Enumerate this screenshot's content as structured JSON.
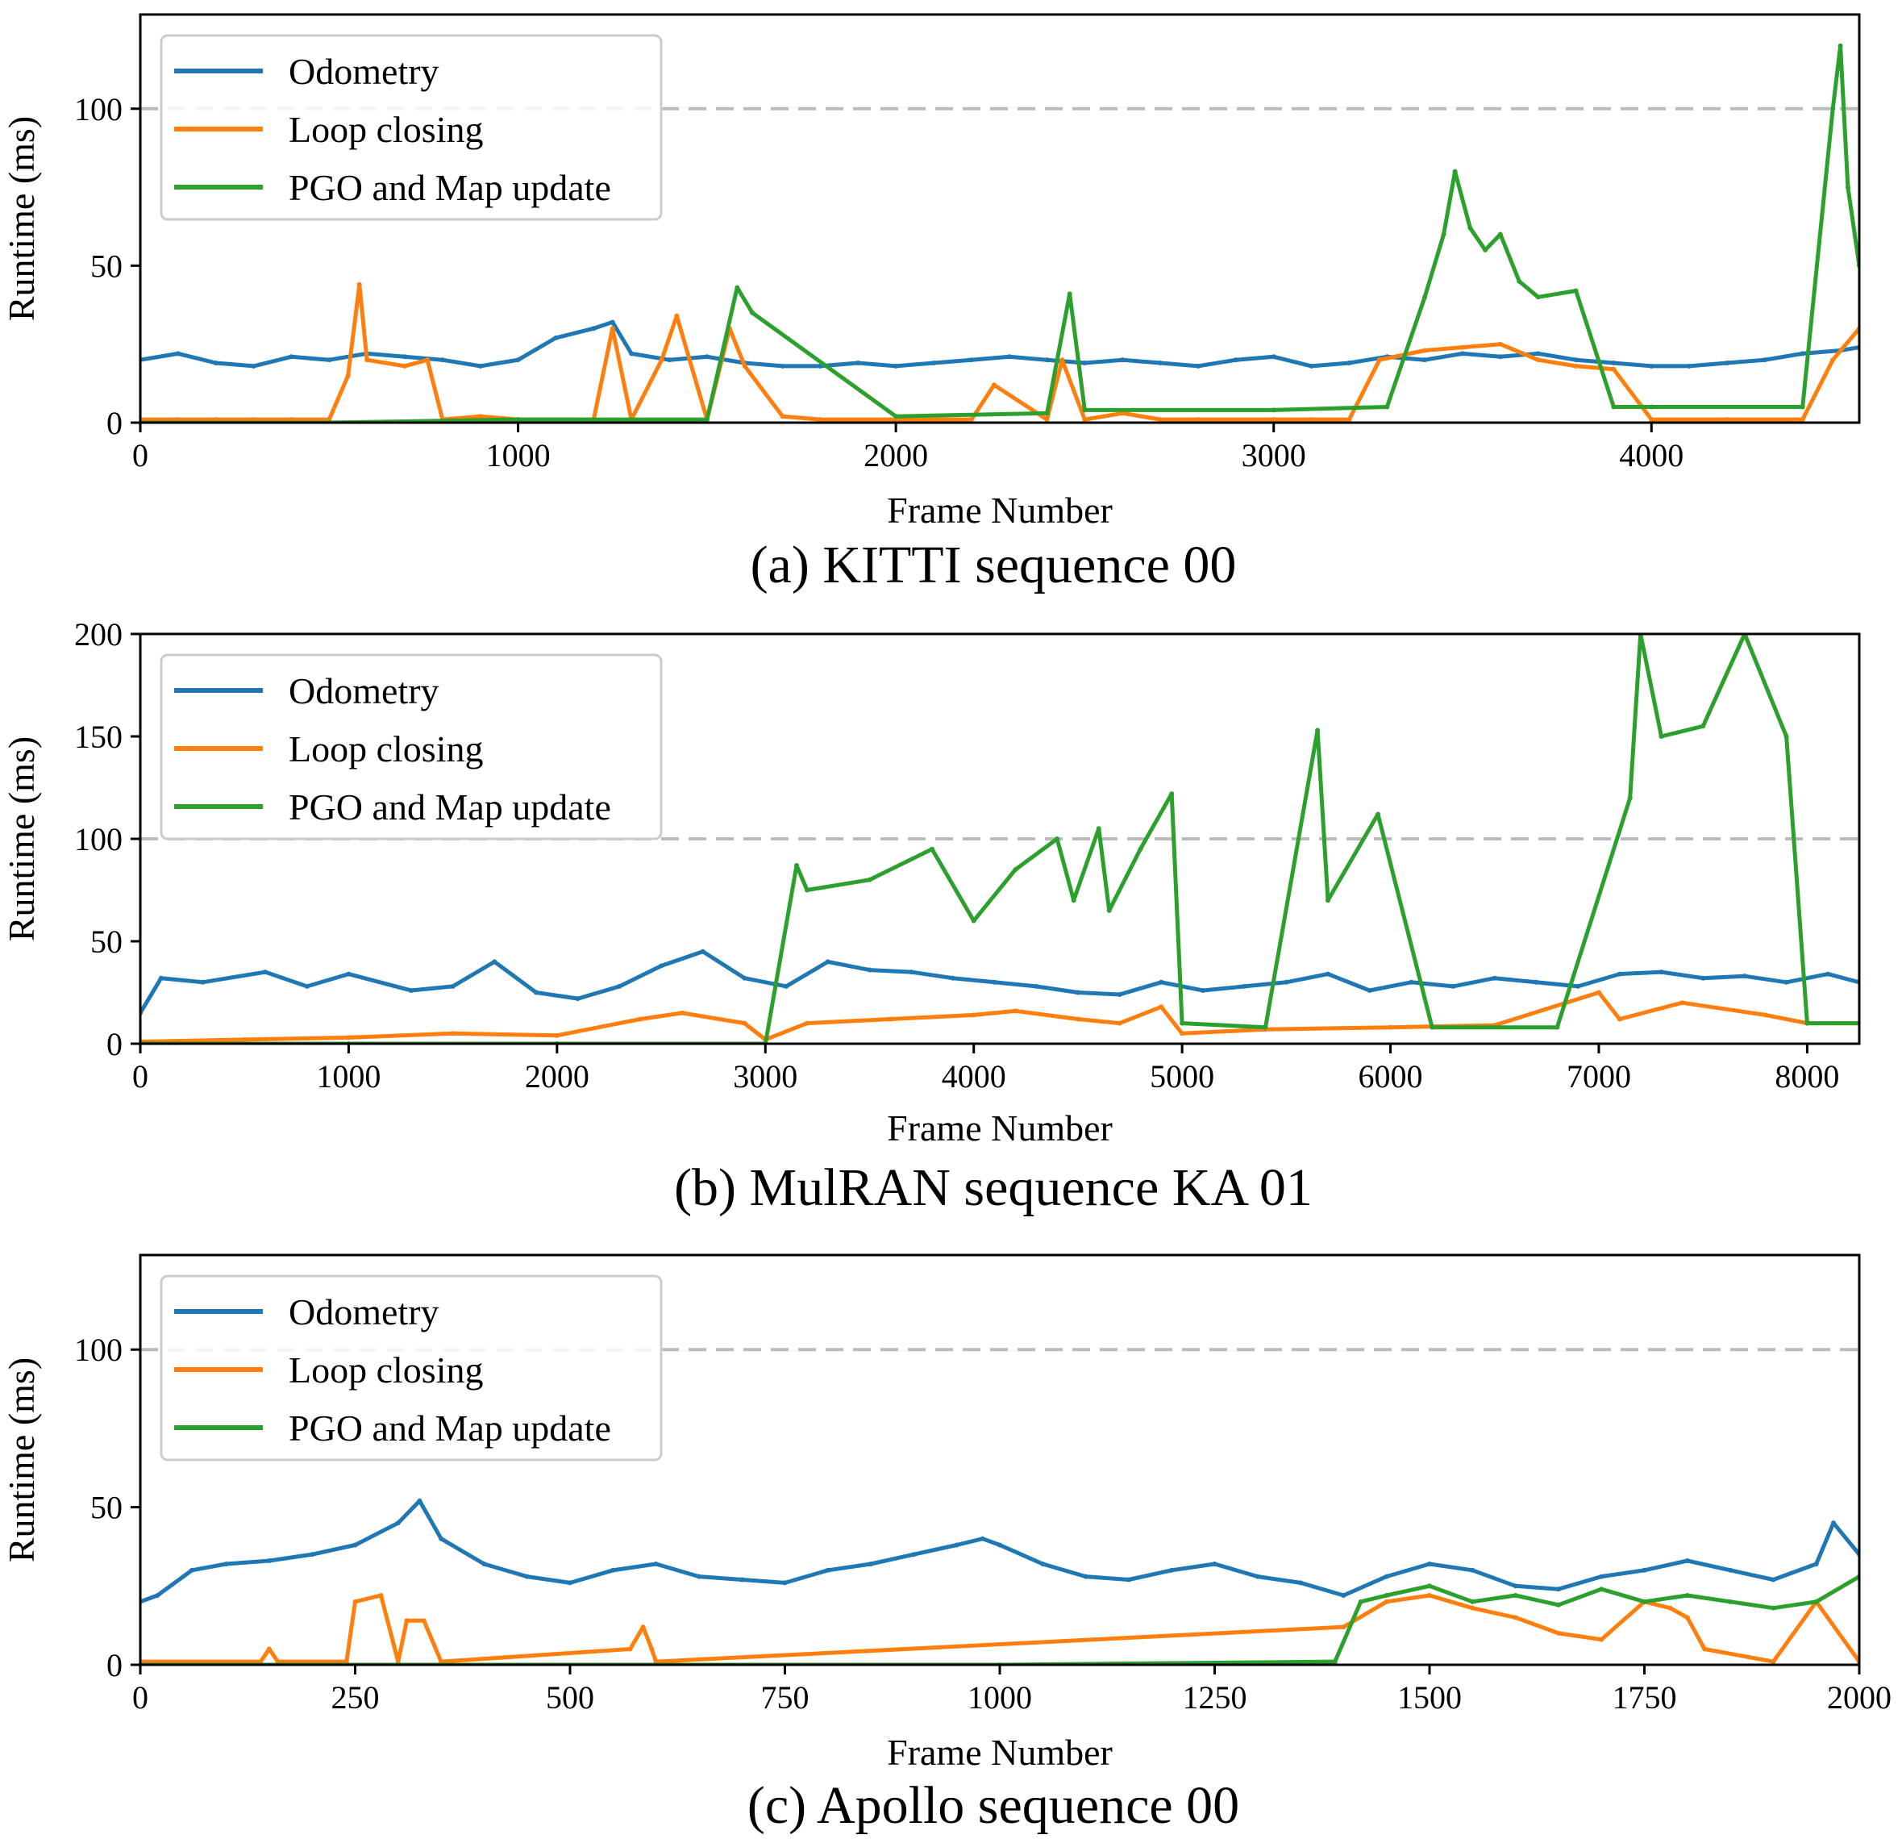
{
  "chart_data": [
    {
      "type": "line",
      "caption": "(a) KITTI sequence 00",
      "xlabel": "Frame Number",
      "ylabel": "Runtime (ms)",
      "xlim": [
        0,
        4550
      ],
      "ylim": [
        0,
        130
      ],
      "xticks": [
        0,
        1000,
        2000,
        3000,
        4000
      ],
      "yticks": [
        0,
        50,
        100
      ],
      "reference_line": {
        "y": 100,
        "style": "dashed",
        "color": "#bbbbbb"
      },
      "legend": {
        "position": "top-left",
        "entries": [
          "Odometry",
          "Loop closing",
          "PGO and Map update"
        ]
      },
      "series": [
        {
          "name": "Odometry",
          "color": "#1f77b4",
          "x": [
            0,
            100,
            200,
            300,
            400,
            500,
            600,
            700,
            800,
            900,
            1000,
            1100,
            1200,
            1250,
            1300,
            1400,
            1500,
            1600,
            1700,
            1800,
            1900,
            2000,
            2100,
            2200,
            2300,
            2400,
            2500,
            2600,
            2700,
            2800,
            2900,
            3000,
            3100,
            3200,
            3300,
            3400,
            3500,
            3600,
            3700,
            3800,
            3900,
            4000,
            4100,
            4200,
            4300,
            4400,
            4500,
            4550
          ],
          "values": [
            20,
            22,
            19,
            18,
            21,
            20,
            22,
            21,
            20,
            18,
            20,
            27,
            30,
            32,
            22,
            20,
            21,
            19,
            18,
            18,
            19,
            18,
            19,
            20,
            21,
            20,
            19,
            20,
            19,
            18,
            20,
            21,
            18,
            19,
            21,
            20,
            22,
            21,
            22,
            20,
            19,
            18,
            18,
            19,
            20,
            22,
            23,
            24
          ]
        },
        {
          "name": "Loop closing",
          "color": "#ff7f0e",
          "x": [
            0,
            100,
            200,
            300,
            400,
            500,
            550,
            580,
            600,
            700,
            760,
            800,
            900,
            1000,
            1200,
            1250,
            1300,
            1380,
            1420,
            1500,
            1560,
            1600,
            1700,
            1800,
            2000,
            2200,
            2260,
            2400,
            2440,
            2500,
            2600,
            2700,
            2800,
            3000,
            3100,
            3200,
            3280,
            3400,
            3500,
            3600,
            3700,
            3800,
            3900,
            4000,
            4200,
            4400,
            4480,
            4550
          ],
          "values": [
            1,
            1,
            1,
            1,
            1,
            1,
            15,
            44,
            20,
            18,
            20,
            1,
            2,
            1,
            1,
            30,
            1,
            20,
            34,
            1,
            30,
            18,
            2,
            1,
            1,
            1,
            12,
            1,
            20,
            1,
            3,
            1,
            1,
            1,
            1,
            1,
            20,
            23,
            24,
            25,
            20,
            18,
            17,
            1,
            1,
            1,
            20,
            30
          ]
        },
        {
          "name": "PGO and Map update",
          "color": "#2ca02c",
          "x": [
            0,
            500,
            1000,
            1500,
            1580,
            1620,
            2000,
            2400,
            2460,
            2500,
            3000,
            3300,
            3400,
            3450,
            3480,
            3520,
            3560,
            3600,
            3650,
            3700,
            3800,
            3900,
            4000,
            4400,
            4480,
            4500,
            4520,
            4550
          ],
          "values": [
            0,
            0,
            1,
            1,
            43,
            35,
            2,
            3,
            41,
            4,
            4,
            5,
            40,
            60,
            80,
            62,
            55,
            60,
            45,
            40,
            42,
            5,
            5,
            5,
            100,
            120,
            75,
            50
          ]
        }
      ]
    },
    {
      "type": "line",
      "caption": "(b) MulRAN sequence KA 01",
      "xlabel": "Frame Number",
      "ylabel": "Runtime (ms)",
      "xlim": [
        0,
        8250
      ],
      "ylim": [
        0,
        200
      ],
      "xticks": [
        0,
        1000,
        2000,
        3000,
        4000,
        5000,
        6000,
        7000,
        8000
      ],
      "yticks": [
        0,
        50,
        100,
        150,
        200
      ],
      "reference_line": {
        "y": 100,
        "style": "dashed",
        "color": "#bbbbbb"
      },
      "legend": {
        "position": "top-left",
        "entries": [
          "Odometry",
          "Loop closing",
          "PGO and Map update"
        ]
      },
      "series": [
        {
          "name": "Odometry",
          "color": "#1f77b4",
          "x": [
            0,
            100,
            300,
            600,
            800,
            1000,
            1300,
            1500,
            1700,
            1900,
            2100,
            2300,
            2500,
            2700,
            2900,
            3100,
            3300,
            3500,
            3700,
            3900,
            4100,
            4300,
            4500,
            4700,
            4900,
            5100,
            5300,
            5500,
            5700,
            5900,
            6100,
            6300,
            6500,
            6700,
            6900,
            7100,
            7300,
            7500,
            7700,
            7900,
            8100,
            8250
          ],
          "values": [
            15,
            32,
            30,
            35,
            28,
            34,
            26,
            28,
            40,
            25,
            22,
            28,
            38,
            45,
            32,
            28,
            40,
            36,
            35,
            32,
            30,
            28,
            25,
            24,
            30,
            26,
            28,
            30,
            34,
            26,
            30,
            28,
            32,
            30,
            28,
            34,
            35,
            32,
            33,
            30,
            34,
            30
          ]
        },
        {
          "name": "Loop closing",
          "color": "#ff7f0e",
          "x": [
            0,
            500,
            1000,
            1500,
            2000,
            2400,
            2600,
            2900,
            3000,
            3200,
            3600,
            4000,
            4200,
            4500,
            4700,
            4900,
            5000,
            5400,
            6000,
            6500,
            7000,
            7100,
            7400,
            7800,
            8000,
            8250
          ],
          "values": [
            1,
            2,
            3,
            5,
            4,
            12,
            15,
            10,
            2,
            10,
            12,
            14,
            16,
            12,
            10,
            18,
            5,
            7,
            8,
            9,
            25,
            12,
            20,
            14,
            10,
            10
          ]
        },
        {
          "name": "PGO and Map update",
          "color": "#2ca02c",
          "x": [
            0,
            1000,
            2000,
            3000,
            3150,
            3200,
            3500,
            3800,
            4000,
            4200,
            4400,
            4480,
            4600,
            4650,
            4800,
            4950,
            5000,
            5400,
            5650,
            5700,
            5940,
            6200,
            6800,
            7150,
            7200,
            7300,
            7500,
            7700,
            7900,
            8000,
            8250
          ],
          "values": [
            0,
            0,
            0,
            0,
            87,
            75,
            80,
            95,
            60,
            85,
            100,
            70,
            105,
            65,
            95,
            122,
            10,
            8,
            153,
            70,
            112,
            8,
            8,
            120,
            200,
            150,
            155,
            200,
            150,
            10,
            10
          ]
        }
      ]
    },
    {
      "type": "line",
      "caption": "(c) Apollo sequence 00",
      "xlabel": "Frame Number",
      "ylabel": "Runtime (ms)",
      "xlim": [
        0,
        2000
      ],
      "ylim": [
        0,
        130
      ],
      "xticks": [
        0,
        250,
        500,
        750,
        1000,
        1250,
        1500,
        1750,
        2000
      ],
      "yticks": [
        0,
        50,
        100
      ],
      "reference_line": {
        "y": 100,
        "style": "dashed",
        "color": "#bbbbbb"
      },
      "legend": {
        "position": "top-left",
        "entries": [
          "Odometry",
          "Loop closing",
          "PGO and Map update"
        ]
      },
      "series": [
        {
          "name": "Odometry",
          "color": "#1f77b4",
          "x": [
            0,
            20,
            60,
            100,
            150,
            200,
            250,
            300,
            325,
            350,
            400,
            450,
            500,
            550,
            600,
            650,
            700,
            750,
            800,
            850,
            900,
            950,
            980,
            1000,
            1050,
            1100,
            1150,
            1200,
            1250,
            1300,
            1350,
            1400,
            1450,
            1500,
            1550,
            1600,
            1650,
            1700,
            1750,
            1800,
            1850,
            1900,
            1950,
            1970,
            2000
          ],
          "values": [
            20,
            22,
            30,
            32,
            33,
            35,
            38,
            45,
            52,
            40,
            32,
            28,
            26,
            30,
            32,
            28,
            27,
            26,
            30,
            32,
            35,
            38,
            40,
            38,
            32,
            28,
            27,
            30,
            32,
            28,
            26,
            22,
            28,
            32,
            30,
            25,
            24,
            28,
            30,
            33,
            30,
            27,
            32,
            45,
            35
          ]
        },
        {
          "name": "Loop closing",
          "color": "#ff7f0e",
          "x": [
            0,
            140,
            150,
            160,
            240,
            250,
            280,
            300,
            310,
            330,
            350,
            570,
            585,
            595,
            600,
            1400,
            1450,
            1500,
            1550,
            1600,
            1650,
            1700,
            1750,
            1780,
            1800,
            1820,
            1900,
            1950,
            2000
          ],
          "values": [
            1,
            1,
            5,
            1,
            1,
            20,
            22,
            1,
            14,
            14,
            1,
            5,
            12,
            5,
            1,
            12,
            20,
            22,
            18,
            15,
            10,
            8,
            20,
            18,
            15,
            5,
            1,
            20,
            1
          ]
        },
        {
          "name": "PGO and Map update",
          "color": "#2ca02c",
          "x": [
            0,
            1000,
            1390,
            1420,
            1450,
            1500,
            1550,
            1600,
            1650,
            1700,
            1750,
            1800,
            1850,
            1900,
            1950,
            2000
          ],
          "values": [
            0,
            0,
            1,
            20,
            22,
            25,
            20,
            22,
            19,
            24,
            20,
            22,
            20,
            18,
            20,
            28
          ]
        }
      ]
    }
  ]
}
